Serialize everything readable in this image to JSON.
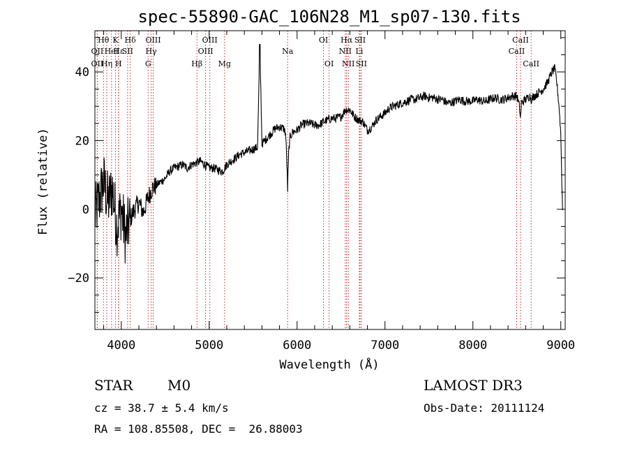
{
  "chart_data": {
    "type": "line",
    "title": "spec-55890-GAC_106N28_M1_sp07-130.fits",
    "xlabel": "Wavelength (Å)",
    "ylabel": "Flux (relative)",
    "xlim": [
      3700,
      9050
    ],
    "ylim": [
      -35,
      52
    ],
    "xticks": [
      4000,
      5000,
      6000,
      7000,
      8000,
      9000
    ],
    "yticks": [
      -20,
      0,
      20,
      40
    ],
    "colors": {
      "spectrum": "#000000",
      "lines": "#cc2222"
    },
    "spectral_lines": [
      {
        "label": "OII",
        "wavelength": 3727,
        "row": 2
      },
      {
        "label": "Hθ",
        "wavelength": 3797,
        "row": 1
      },
      {
        "label": "OII",
        "wavelength": 3727,
        "row": 3
      },
      {
        "label": "Hε",
        "wavelength": 3970,
        "row": 2
      },
      {
        "label": "Hη",
        "wavelength": 3835,
        "row": 3
      },
      {
        "label": "HeI",
        "wavelength": 3889,
        "row": 2
      },
      {
        "label": "K",
        "wavelength": 3934,
        "row": 1
      },
      {
        "label": "H",
        "wavelength": 3968,
        "row": 3
      },
      {
        "label": "SII",
        "wavelength": 4072,
        "row": 2
      },
      {
        "label": "Hδ",
        "wavelength": 4102,
        "row": 1
      },
      {
        "label": "OIII",
        "wavelength": 4363,
        "row": 1
      },
      {
        "label": "Hγ",
        "wavelength": 4340,
        "row": 2
      },
      {
        "label": "G",
        "wavelength": 4305,
        "row": 3
      },
      {
        "label": "Hβ",
        "wavelength": 4861,
        "row": 3
      },
      {
        "label": "OIII",
        "wavelength": 4959,
        "row": 2
      },
      {
        "label": "OIII",
        "wavelength": 5007,
        "row": 1
      },
      {
        "label": "Mg",
        "wavelength": 5175,
        "row": 3
      },
      {
        "label": "Na",
        "wavelength": 5893,
        "row": 2
      },
      {
        "label": "OI",
        "wavelength": 6300,
        "row": 1
      },
      {
        "label": "OI",
        "wavelength": 6364,
        "row": 3
      },
      {
        "label": "NII",
        "wavelength": 6548,
        "row": 2
      },
      {
        "label": "Hα",
        "wavelength": 6563,
        "row": 1
      },
      {
        "label": "NII",
        "wavelength": 6583,
        "row": 3
      },
      {
        "label": "Li",
        "wavelength": 6708,
        "row": 2
      },
      {
        "label": "SII",
        "wavelength": 6716,
        "row": 1
      },
      {
        "label": "SII",
        "wavelength": 6731,
        "row": 3
      },
      {
        "label": "CaII",
        "wavelength": 8498,
        "row": 2
      },
      {
        "label": "CaII",
        "wavelength": 8542,
        "row": 1
      },
      {
        "label": "CaII",
        "wavelength": 8662,
        "row": 3
      }
    ],
    "spectrum_x": [
      3700,
      3750,
      3800,
      3850,
      3900,
      3950,
      4000,
      4050,
      4100,
      4150,
      4200,
      4250,
      4300,
      4350,
      4400,
      4450,
      4500,
      4550,
      4600,
      4650,
      4700,
      4750,
      4800,
      4850,
      4900,
      4950,
      5000,
      5050,
      5100,
      5150,
      5200,
      5250,
      5300,
      5350,
      5400,
      5450,
      5500,
      5550,
      5577,
      5600,
      5650,
      5700,
      5750,
      5800,
      5850,
      5870,
      5880,
      5890,
      5893,
      5896,
      5905,
      5920,
      5950,
      6000,
      6050,
      6100,
      6150,
      6200,
      6250,
      6300,
      6350,
      6400,
      6450,
      6500,
      6550,
      6600,
      6650,
      6700,
      6750,
      6800,
      6850,
      6900,
      6950,
      7000,
      7050,
      7100,
      7150,
      7200,
      7250,
      7300,
      7350,
      7400,
      7450,
      7500,
      7550,
      7600,
      7650,
      7700,
      7750,
      7800,
      7850,
      7900,
      7950,
      8000,
      8050,
      8100,
      8150,
      8200,
      8250,
      8300,
      8350,
      8400,
      8450,
      8500,
      8530,
      8542,
      8550,
      8600,
      8650,
      8662,
      8700,
      8750,
      8800,
      8850,
      8900,
      8930,
      8950,
      8980,
      9000,
      9010,
      9020
    ],
    "spectrum_y": [
      -2,
      3,
      8,
      2,
      6,
      -5,
      0,
      -8,
      -3,
      0,
      2,
      -1,
      3,
      6,
      7,
      8,
      9,
      11,
      12,
      12.5,
      13,
      12,
      13,
      13.5,
      14,
      13,
      12,
      12,
      11.5,
      11,
      13,
      14,
      15,
      16,
      16.5,
      17,
      17.5,
      18,
      48,
      19,
      20.5,
      22,
      23.5,
      24,
      23.5,
      22,
      16,
      9,
      4,
      10,
      17,
      21,
      22.5,
      23,
      24.5,
      25,
      25,
      24.5,
      24.5,
      25.5,
      26,
      26.5,
      26.5,
      27,
      29,
      29,
      27,
      26,
      25.5,
      23,
      24,
      26,
      27,
      28,
      29.5,
      30,
      30.5,
      31,
      31.5,
      32,
      32,
      32.5,
      33,
      32.5,
      32.5,
      32,
      32,
      31,
      31,
      31.5,
      32,
      31.5,
      31.5,
      31.5,
      32,
      31.5,
      31.5,
      32,
      32.5,
      32,
      32,
      32.5,
      33,
      33,
      30,
      26,
      31,
      32,
      33,
      32,
      33,
      34,
      35,
      37,
      40,
      41,
      38,
      30,
      22,
      10,
      0
    ]
  },
  "info": {
    "object_class": "STAR",
    "subclass": "M0",
    "redshift": "cz = 38.7 ± 5.4 km/s",
    "coords": "RA = 108.85508, DEC =  26.88003",
    "survey": "LAMOST DR3",
    "obs_date": "Obs-Date: 20111124"
  }
}
